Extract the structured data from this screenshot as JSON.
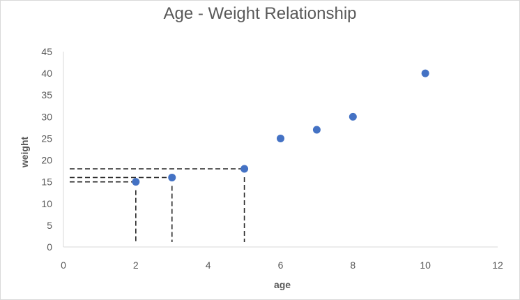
{
  "chart_data": {
    "type": "scatter",
    "title": "Age - Weight Relationship",
    "xlabel": "age",
    "ylabel": "weight",
    "xlim": [
      0,
      12
    ],
    "ylim": [
      0,
      45
    ],
    "xticks": [
      0,
      2,
      4,
      6,
      8,
      10,
      12
    ],
    "yticks": [
      0,
      5,
      10,
      15,
      20,
      25,
      30,
      35,
      40,
      45
    ],
    "grid": false,
    "legend": "none",
    "series": [
      {
        "color": "#4472C4",
        "points": [
          {
            "x": 2,
            "y": 15
          },
          {
            "x": 3,
            "y": 16
          },
          {
            "x": 5,
            "y": 18
          },
          {
            "x": 6,
            "y": 25
          },
          {
            "x": 7,
            "y": 27
          },
          {
            "x": 8,
            "y": 30
          },
          {
            "x": 10,
            "y": 40
          }
        ]
      }
    ],
    "annotations": {
      "style": "dashed-drop-lines",
      "color": "#262626",
      "points": [
        {
          "x": 2,
          "y": 15
        },
        {
          "x": 3,
          "y": 16
        },
        {
          "x": 5,
          "y": 18
        }
      ]
    }
  }
}
